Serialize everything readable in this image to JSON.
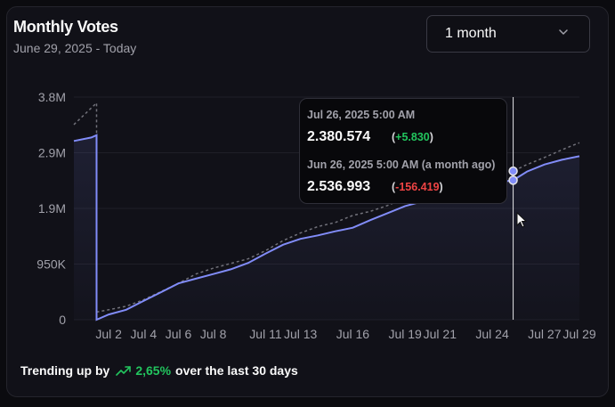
{
  "card": {
    "title": "Monthly Votes",
    "subtitle": "June 29, 2025 - Today"
  },
  "range_select": {
    "value": "1 month",
    "icon": "chevron-down-icon"
  },
  "tooltip": {
    "current": {
      "date": "Jul 26, 2025 5:00 AM",
      "value": "2.380.574",
      "delta": "+5.830"
    },
    "previous": {
      "date": "Jun 26, 2025 5:00 AM (a month ago)",
      "value": "2.536.993",
      "delta": "-156.419"
    }
  },
  "footer": {
    "prefix": "Trending up by",
    "percent": "2,65%",
    "suffix": "over the last 30 days",
    "icon": "trending-up-icon"
  },
  "colors": {
    "accent": "#818cf8",
    "positive": "#22c55e",
    "negative": "#ef4444",
    "comparison": "#71717a"
  },
  "chart_data": {
    "type": "area",
    "ylim": [
      0,
      3800000
    ],
    "y_ticks": [
      "0",
      "950K",
      "1.9M",
      "2.9M",
      "3.8M"
    ],
    "y_tick_values": [
      0,
      950000,
      1900000,
      2850000,
      3800000
    ],
    "x_ticks": [
      "Jul 2",
      "Jul 4",
      "Jul 6",
      "Jul 8",
      "Jul 11",
      "Jul 13",
      "Jul 16",
      "Jul 19",
      "Jul 21",
      "Jul 24",
      "Jul 27",
      "Jul 29"
    ],
    "x_tick_days": [
      2,
      4,
      6,
      8,
      11,
      13,
      16,
      19,
      21,
      24,
      27,
      29
    ],
    "grid": "horizontal",
    "hover_day": 25.2,
    "series": [
      {
        "values_day": [
          0,
          1,
          1.3,
          1.3,
          2,
          3,
          4,
          5,
          6,
          7,
          8,
          9,
          10,
          11,
          12,
          13,
          14,
          15,
          16,
          17,
          18,
          19,
          20,
          21,
          22,
          23,
          24,
          25.2,
          26,
          27,
          28,
          29
        ],
        "values": [
          3050000,
          3110000,
          3150000,
          0,
          90000,
          170000,
          320000,
          470000,
          620000,
          700000,
          780000,
          860000,
          970000,
          1130000,
          1280000,
          1380000,
          1440000,
          1510000,
          1570000,
          1700000,
          1820000,
          1940000,
          2020000,
          2100000,
          2180000,
          2250000,
          2330000,
          2380574,
          2530000,
          2650000,
          2730000,
          2790000
        ]
      },
      {
        "values_day": [
          0,
          1.3,
          1.3,
          2,
          3,
          4,
          5,
          6,
          7,
          8,
          9,
          10,
          11,
          12,
          13,
          14,
          15,
          16,
          17,
          18,
          19,
          20,
          21,
          22,
          23,
          24,
          25.2,
          26,
          27,
          28,
          29
        ],
        "values": [
          3330000,
          3700000,
          130000,
          170000,
          230000,
          340000,
          480000,
          620000,
          780000,
          880000,
          960000,
          1040000,
          1180000,
          1350000,
          1480000,
          1590000,
          1660000,
          1780000,
          1850000,
          1950000,
          2080000,
          2170000,
          2250000,
          2330000,
          2400000,
          2460000,
          2536993,
          2650000,
          2770000,
          2900000,
          3020000
        ]
      }
    ]
  }
}
